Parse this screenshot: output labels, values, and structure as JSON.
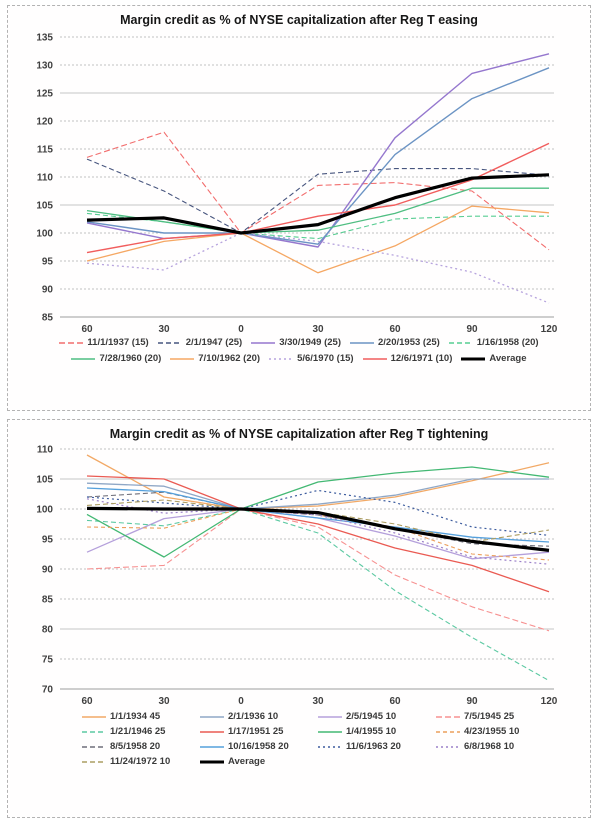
{
  "chart_data": [
    {
      "type": "line",
      "title": "Margin credit as % of NYSE capitalization after Reg T easing",
      "x": [
        -60,
        -30,
        0,
        30,
        60,
        90,
        120
      ],
      "x_tick_labels": [
        "60",
        "30",
        "0",
        "30",
        "60",
        "90",
        "120"
      ],
      "xlabel": "",
      "ylabel": "",
      "ylim": [
        85,
        135
      ],
      "ytick_step": 5,
      "grid": true,
      "legend_position": "bottom",
      "note": "all series indexed to 100 at month 0 (Reg T easing date)",
      "series": [
        {
          "name": "11/1/1937 (15)",
          "color": "#f26d6d",
          "dash": "6 3",
          "width": 1.1,
          "values": [
            113.5,
            118,
            100,
            108.5,
            109,
            107.5,
            97
          ]
        },
        {
          "name": "2/1/1947 (25)",
          "color": "#47557e",
          "dash": "5 3",
          "width": 1.1,
          "values": [
            113.2,
            107.5,
            100,
            110.5,
            111.5,
            111.5,
            110.3
          ]
        },
        {
          "name": "3/30/1949 (25)",
          "color": "#9577ce",
          "dash": "",
          "width": 1.4,
          "values": [
            101.8,
            99,
            100,
            97.5,
            117,
            128.5,
            132
          ]
        },
        {
          "name": "2/20/1953 (25)",
          "color": "#6c94c4",
          "dash": "",
          "width": 1.4,
          "values": [
            102,
            100,
            100,
            98,
            114,
            124,
            129.5
          ]
        },
        {
          "name": "1/16/1958 (20)",
          "color": "#57cd92",
          "dash": "5 3",
          "width": 1.1,
          "values": [
            103.5,
            102,
            100,
            99,
            102.5,
            103,
            103
          ]
        },
        {
          "name": "7/28/1960 (20)",
          "color": "#4fbe82",
          "dash": "",
          "width": 1.3,
          "values": [
            104,
            102,
            100,
            100.5,
            103.5,
            108,
            108
          ]
        },
        {
          "name": "7/10/1962 (20)",
          "color": "#f5a763",
          "dash": "",
          "width": 1.3,
          "values": [
            95,
            98.5,
            100,
            92.9,
            97.7,
            104.8,
            103.6
          ]
        },
        {
          "name": "5/6/1970 (15)",
          "color": "#b7a4de",
          "dash": "2 3",
          "width": 1.3,
          "values": [
            94.6,
            93.4,
            100,
            98.5,
            96,
            93,
            87.5
          ]
        },
        {
          "name": "12/6/1971 (10)",
          "color": "#f15d5d",
          "dash": "",
          "width": 1.4,
          "values": [
            96.5,
            99,
            100,
            103,
            105,
            109.5,
            116
          ]
        },
        {
          "name": "Average",
          "color": "#000000",
          "dash": "",
          "width": 3.2,
          "values": [
            102.3,
            102.7,
            100,
            101.5,
            106.3,
            109.8,
            110.4
          ]
        }
      ]
    },
    {
      "type": "line",
      "title": "Margin credit as % of NYSE capitalization after Reg T tightening",
      "x": [
        -60,
        -30,
        0,
        30,
        60,
        90,
        120
      ],
      "x_tick_labels": [
        "60",
        "30",
        "0",
        "30",
        "60",
        "90",
        "120"
      ],
      "xlabel": "",
      "ylabel": "",
      "ylim": [
        70,
        110
      ],
      "ytick_step": 5,
      "grid": true,
      "legend_position": "bottom",
      "note": "all series indexed to 100 at month 0 (Reg T tightening date)",
      "series": [
        {
          "name": "1/1/1934 45",
          "color": "#f2a966",
          "dash": "",
          "width": 1.3,
          "values": [
            109,
            102,
            100,
            100.5,
            102,
            104.7,
            107.7
          ]
        },
        {
          "name": "2/1/1936 10",
          "color": "#8fa7c6",
          "dash": "",
          "width": 1.3,
          "values": [
            104.3,
            103.8,
            100,
            100.8,
            102.3,
            105,
            105
          ]
        },
        {
          "name": "2/5/1945 10",
          "color": "#b5a0db",
          "dash": "",
          "width": 1.3,
          "values": [
            92.8,
            98.4,
            100,
            98.5,
            95.5,
            91.7,
            92.8
          ]
        },
        {
          "name": "7/5/1945 25",
          "color": "#f79191",
          "dash": "6 3",
          "width": 1.1,
          "values": [
            90,
            90.6,
            100,
            97,
            89,
            83.7,
            79.7
          ]
        },
        {
          "name": "1/21/1946 25",
          "color": "#5cc9a2",
          "dash": "5 3",
          "width": 1.1,
          "values": [
            98.1,
            97.2,
            100,
            96,
            86.4,
            78.6,
            71.4
          ]
        },
        {
          "name": "1/17/1951 25",
          "color": "#ea5a52",
          "dash": "",
          "width": 1.3,
          "values": [
            105.5,
            105,
            100,
            97.5,
            93.5,
            90.6,
            86.2
          ]
        },
        {
          "name": "1/4/1955 10",
          "color": "#43b873",
          "dash": "",
          "width": 1.3,
          "values": [
            99.1,
            92,
            100,
            104.5,
            106,
            107,
            105.3
          ]
        },
        {
          "name": "4/23/1955 10",
          "color": "#ec9f5c",
          "dash": "4 3",
          "width": 1.1,
          "values": [
            97,
            96.8,
            100,
            99,
            97,
            92.5,
            91.5
          ]
        },
        {
          "name": "8/5/1958 20",
          "color": "#6f6f7a",
          "dash": "5 3",
          "width": 1.1,
          "values": [
            102,
            102.8,
            100,
            99,
            96.8,
            94.2,
            93.8
          ]
        },
        {
          "name": "10/16/1958 20",
          "color": "#55a0dc",
          "dash": "",
          "width": 1.3,
          "values": [
            103.5,
            102.9,
            100,
            98.5,
            97,
            95.3,
            94.5
          ]
        },
        {
          "name": "11/6/1963 20",
          "color": "#3d5c9e",
          "dash": "2 3",
          "width": 1.2,
          "values": [
            102,
            101,
            100,
            103.1,
            101.1,
            97,
            95.6
          ]
        },
        {
          "name": "6/8/1968 10",
          "color": "#9c81c9",
          "dash": "2 3",
          "width": 1.2,
          "values": [
            101.7,
            99.3,
            100,
            99,
            96,
            92,
            90.8
          ]
        },
        {
          "name": "11/24/1972 10",
          "color": "#ac9d62",
          "dash": "5 3",
          "width": 1.1,
          "values": [
            100.6,
            101.5,
            100,
            99.5,
            97.5,
            94.5,
            96.5
          ]
        },
        {
          "name": "Average",
          "color": "#000000",
          "dash": "",
          "width": 3.2,
          "values": [
            100.1,
            100,
            100,
            99.4,
            96.7,
            94.6,
            93.1
          ]
        }
      ]
    }
  ]
}
